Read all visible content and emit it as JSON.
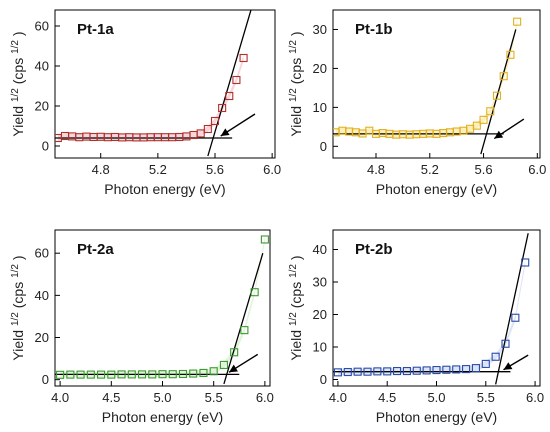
{
  "chart_data": [
    {
      "type": "scatter",
      "title": "Pt-1a",
      "xlabel": "Photon energy (eV)",
      "ylabel_main": "Yield",
      "ylabel_exp": "1/2",
      "ylabel_unit": " (cps",
      "ylabel_unit_exp": "1/2",
      "ylabel_close": ")",
      "xlim": [
        4.48,
        6.02
      ],
      "ylim": [
        -6,
        68
      ],
      "xticks": [
        4.8,
        5.2,
        5.6,
        6.0
      ],
      "xtick_labels": [
        "4.8",
        "5.2",
        "5.6",
        "6.0"
      ],
      "yticks": [
        0,
        20,
        40,
        60
      ],
      "ytick_labels": [
        "0",
        "20",
        "40",
        "60"
      ],
      "marker_color": "#b0302a",
      "fill_color": "#f7c6cd",
      "x": [
        4.5,
        4.55,
        4.6,
        4.65,
        4.7,
        4.75,
        4.8,
        4.85,
        4.9,
        4.95,
        5.0,
        5.05,
        5.1,
        5.15,
        5.2,
        5.25,
        5.3,
        5.35,
        5.4,
        5.45,
        5.5,
        5.55,
        5.6,
        5.65,
        5.7,
        5.75,
        5.8
      ],
      "y": [
        4.0,
        5.0,
        4.8,
        4.4,
        4.7,
        4.5,
        4.6,
        4.4,
        4.5,
        4.3,
        4.4,
        4.3,
        4.3,
        4.4,
        4.4,
        4.4,
        4.4,
        4.5,
        4.8,
        5.5,
        6.3,
        8.5,
        12.5,
        19.0,
        25.0,
        33.0,
        44.0
      ],
      "baseline": {
        "x": [
          4.48,
          5.72
        ],
        "y": [
          4.0,
          4.0
        ]
      },
      "fitline": {
        "x": [
          5.55,
          5.86
        ],
        "y": [
          -5.0,
          70.0
        ]
      },
      "arrow": {
        "from": [
          5.88,
          16.0
        ],
        "to": [
          5.64,
          5.0
        ]
      }
    },
    {
      "type": "scatter",
      "title": "Pt-1b",
      "xlabel": "Photon energy (eV)",
      "ylabel_main": "Yield",
      "ylabel_exp": "1/2",
      "ylabel_unit": " (cps",
      "ylabel_unit_exp": "1/2",
      "ylabel_close": ")",
      "xlim": [
        4.48,
        6.02
      ],
      "ylim": [
        -3,
        35
      ],
      "xticks": [
        4.8,
        5.2,
        5.6,
        6.0
      ],
      "xtick_labels": [
        "4.8",
        "5.2",
        "5.6",
        "6.0"
      ],
      "yticks": [
        0,
        10,
        20,
        30
      ],
      "ytick_labels": [
        "0",
        "10",
        "20",
        "30"
      ],
      "marker_color": "#e0b020",
      "fill_color": "#fbe9a3",
      "x": [
        4.5,
        4.55,
        4.6,
        4.65,
        4.7,
        4.75,
        4.8,
        4.85,
        4.9,
        4.95,
        5.0,
        5.05,
        5.1,
        5.15,
        5.2,
        5.25,
        5.3,
        5.35,
        5.4,
        5.45,
        5.5,
        5.55,
        5.6,
        5.65,
        5.7,
        5.75,
        5.8,
        5.85
      ],
      "y": [
        3.6,
        4.0,
        3.8,
        3.6,
        3.3,
        4.0,
        3.2,
        3.4,
        3.2,
        3.0,
        3.1,
        3.0,
        3.1,
        3.2,
        3.3,
        3.2,
        3.4,
        3.6,
        3.8,
        4.0,
        4.5,
        5.3,
        6.8,
        9.0,
        13.0,
        18.0,
        23.5,
        32.0
      ],
      "baseline": {
        "x": [
          4.48,
          5.75
        ],
        "y": [
          3.2,
          3.2
        ]
      },
      "fitline": {
        "x": [
          5.58,
          5.84
        ],
        "y": [
          -2.0,
          30.0
        ]
      },
      "arrow": {
        "from": [
          5.9,
          7.0
        ],
        "to": [
          5.68,
          2.0
        ]
      }
    },
    {
      "type": "scatter",
      "title": "Pt-2a",
      "xlabel": "Photon energy (eV)",
      "ylabel_main": "Yield",
      "ylabel_exp": "1/2",
      "ylabel_unit": " (cps",
      "ylabel_unit_exp": "1/2",
      "ylabel_close": ")",
      "xlim": [
        3.95,
        6.05
      ],
      "ylim": [
        -3,
        71
      ],
      "xticks": [
        4.0,
        4.5,
        5.0,
        5.5,
        6.0
      ],
      "xtick_labels": [
        "4.0",
        "4.5",
        "5.0",
        "5.5",
        "6.0"
      ],
      "yticks": [
        0,
        20,
        40,
        60
      ],
      "ytick_labels": [
        "0",
        "20",
        "40",
        "60"
      ],
      "marker_color": "#3a9a2e",
      "fill_color": "#d6f0cc",
      "x": [
        4.0,
        4.1,
        4.2,
        4.3,
        4.4,
        4.5,
        4.6,
        4.7,
        4.8,
        4.9,
        5.0,
        5.1,
        5.2,
        5.3,
        5.4,
        5.5,
        5.6,
        5.7,
        5.8,
        5.9,
        6.0
      ],
      "y": [
        2.3,
        2.4,
        2.4,
        2.4,
        2.4,
        2.4,
        2.5,
        2.5,
        2.5,
        2.5,
        2.6,
        2.6,
        2.7,
        2.9,
        3.2,
        4.0,
        7.0,
        13.0,
        23.5,
        41.5,
        66.5
      ],
      "baseline": {
        "x": [
          3.95,
          5.75
        ],
        "y": [
          2.5,
          2.5
        ]
      },
      "fitline": {
        "x": [
          5.6,
          5.98
        ],
        "y": [
          -2.0,
          60.0
        ]
      },
      "arrow": {
        "from": [
          5.93,
          12.0
        ],
        "to": [
          5.65,
          3.5
        ]
      }
    },
    {
      "type": "scatter",
      "title": "Pt-2b",
      "xlabel": "Photon energy (eV)",
      "ylabel_main": "Yield",
      "ylabel_exp": "1/2",
      "ylabel_unit": " (cps",
      "ylabel_unit_exp": "1/2",
      "ylabel_close": ")",
      "xlim": [
        3.95,
        6.05
      ],
      "ylim": [
        -2,
        46
      ],
      "xticks": [
        4.0,
        4.5,
        5.0,
        5.5,
        6.0
      ],
      "xtick_labels": [
        "4.0",
        "4.5",
        "5.0",
        "5.5",
        "6.0"
      ],
      "yticks": [
        0,
        10,
        20,
        30,
        40
      ],
      "ytick_labels": [
        "0",
        "10",
        "20",
        "30",
        "40"
      ],
      "marker_color": "#2a4aa8",
      "fill_color": "#d0dcf5",
      "x": [
        4.0,
        4.1,
        4.2,
        4.3,
        4.4,
        4.5,
        4.6,
        4.7,
        4.8,
        4.9,
        5.0,
        5.1,
        5.2,
        5.3,
        5.4,
        5.5,
        5.6,
        5.7,
        5.8,
        5.9
      ],
      "y": [
        2.2,
        2.3,
        2.4,
        2.4,
        2.5,
        2.5,
        2.6,
        2.6,
        2.7,
        2.8,
        2.9,
        3.0,
        3.1,
        3.2,
        3.5,
        4.8,
        7.0,
        11.0,
        19.0,
        36.0
      ],
      "baseline": {
        "x": [
          3.95,
          5.75
        ],
        "y": [
          2.4,
          2.4
        ]
      },
      "fitline": {
        "x": [
          5.6,
          5.93
        ],
        "y": [
          -1.5,
          45.0
        ]
      },
      "arrow": {
        "from": [
          5.93,
          7.5
        ],
        "to": [
          5.68,
          3.0
        ]
      }
    }
  ]
}
